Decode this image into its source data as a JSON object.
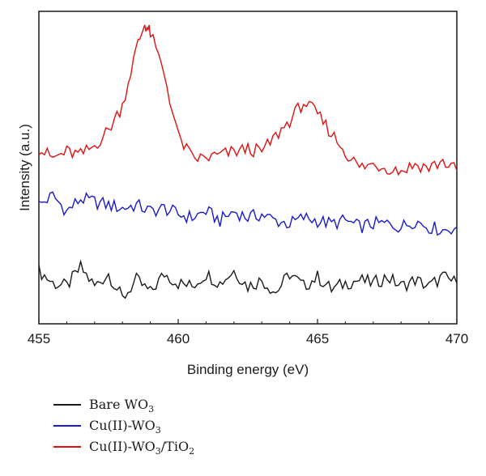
{
  "chart_data": {
    "type": "line",
    "title": "",
    "xlabel": "Binding energy (eV)",
    "ylabel": "Intensity (a.u.)",
    "xlim": [
      455,
      470
    ],
    "x_ticks": [
      "455",
      "460",
      "465",
      "470"
    ],
    "y_ticks": "none",
    "grid": false,
    "legend_position": "below",
    "series": [
      {
        "name": "Bare WO3",
        "color": "#1a1a1a",
        "offset_level": 0.15,
        "x": [
          455.0,
          455.5,
          456.0,
          456.5,
          457.0,
          457.5,
          458.0,
          458.5,
          459.0,
          459.5,
          460.0,
          460.5,
          461.0,
          461.5,
          462.0,
          462.5,
          463.0,
          463.5,
          464.0,
          464.5,
          465.0,
          465.5,
          466.0,
          466.5,
          467.0,
          467.5,
          468.0,
          468.5,
          469.0,
          469.5,
          470.0
        ],
        "y": [
          0.17,
          0.13,
          0.12,
          0.18,
          0.12,
          0.16,
          0.08,
          0.14,
          0.1,
          0.16,
          0.13,
          0.12,
          0.16,
          0.13,
          0.17,
          0.12,
          0.14,
          0.1,
          0.16,
          0.12,
          0.15,
          0.11,
          0.13,
          0.14,
          0.13,
          0.15,
          0.12,
          0.14,
          0.12,
          0.15,
          0.13
        ]
      },
      {
        "name": "Cu(II)-WO3",
        "color": "#1a1acc",
        "offset_level": 0.38,
        "x": [
          455.0,
          455.5,
          456.0,
          456.5,
          457.0,
          457.5,
          458.0,
          458.5,
          459.0,
          459.5,
          460.0,
          460.5,
          461.0,
          461.5,
          462.0,
          462.5,
          463.0,
          463.5,
          464.0,
          464.5,
          465.0,
          465.5,
          466.0,
          466.5,
          467.0,
          467.5,
          468.0,
          468.5,
          469.0,
          469.5,
          470.0
        ],
        "y": [
          0.38,
          0.41,
          0.36,
          0.4,
          0.39,
          0.38,
          0.37,
          0.38,
          0.36,
          0.37,
          0.35,
          0.34,
          0.36,
          0.33,
          0.36,
          0.34,
          0.35,
          0.33,
          0.32,
          0.34,
          0.33,
          0.32,
          0.33,
          0.31,
          0.32,
          0.32,
          0.31,
          0.33,
          0.31,
          0.3,
          0.31
        ]
      },
      {
        "name": "Cu(II)-WO3/TiO2",
        "color": "#e01010",
        "offset_level": 0.56,
        "x": [
          455.0,
          455.5,
          456.0,
          456.5,
          457.0,
          457.5,
          458.0,
          458.5,
          458.8,
          459.0,
          459.5,
          460.0,
          460.5,
          461.0,
          461.5,
          462.0,
          462.5,
          463.0,
          463.5,
          464.0,
          464.5,
          465.0,
          465.5,
          466.0,
          466.5,
          467.0,
          467.5,
          468.0,
          468.5,
          469.0,
          469.5,
          470.0
        ],
        "y": [
          0.56,
          0.53,
          0.55,
          0.54,
          0.57,
          0.62,
          0.7,
          0.88,
          0.96,
          0.93,
          0.8,
          0.6,
          0.53,
          0.53,
          0.54,
          0.55,
          0.56,
          0.55,
          0.6,
          0.65,
          0.71,
          0.67,
          0.61,
          0.55,
          0.5,
          0.51,
          0.5,
          0.49,
          0.51,
          0.5,
          0.52,
          0.49
        ]
      }
    ]
  },
  "legend": {
    "items": [
      {
        "base": "Bare WO",
        "sub1": "3",
        "mid": "",
        "sub2": ""
      },
      {
        "base": "Cu(II)-WO",
        "sub1": "3",
        "mid": "",
        "sub2": ""
      },
      {
        "base": "Cu(II)-WO",
        "sub1": "3",
        "mid": "/TiO",
        "sub2": "2"
      }
    ]
  }
}
